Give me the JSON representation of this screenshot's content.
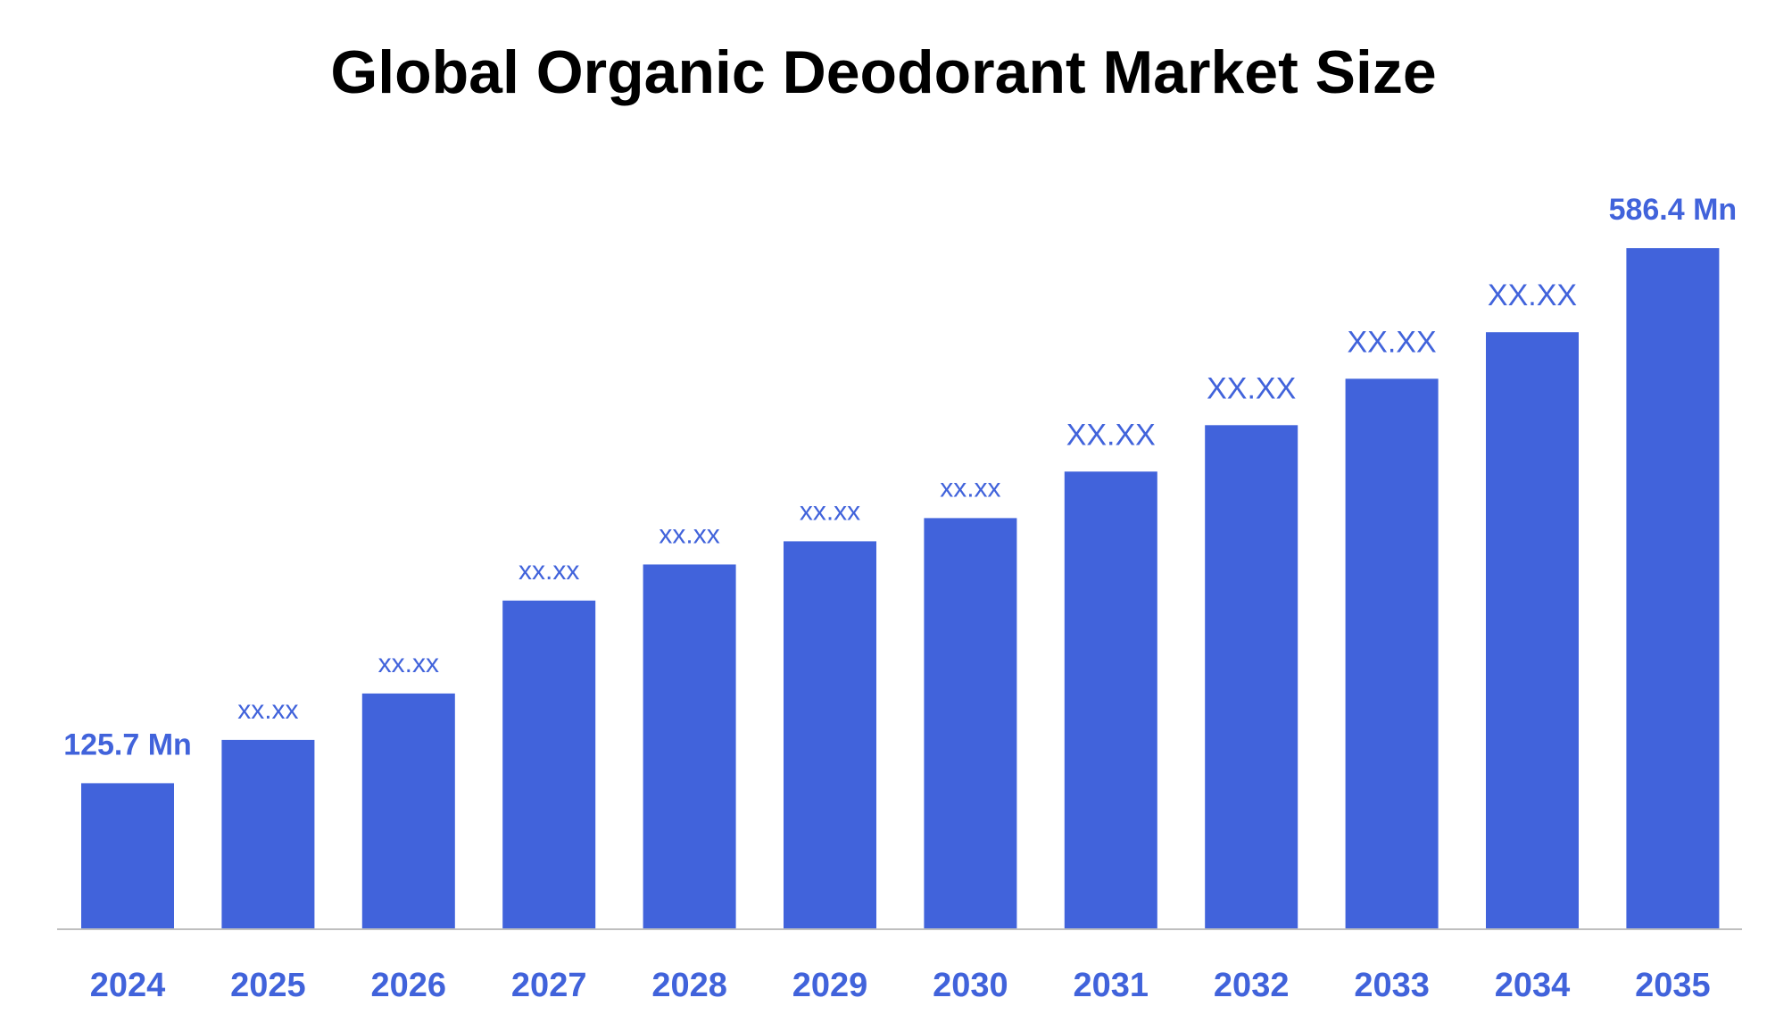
{
  "chart_data": {
    "type": "bar",
    "title": "Global Organic Deodorant Market Size",
    "categories": [
      "2024",
      "2025",
      "2026",
      "2027",
      "2028",
      "2029",
      "2030",
      "2031",
      "2032",
      "2033",
      "2034",
      "2035"
    ],
    "values": [
      125.7,
      163,
      203,
      283,
      314,
      334,
      354,
      394,
      434,
      474,
      514,
      586.4
    ],
    "data_labels": [
      "125.7 Mn",
      "xx.xx",
      "xx.xx",
      "xx.xx",
      "xx.xx",
      "xx.xx",
      "xx.xx",
      "XX.XX",
      "XX.XX",
      "XX.XX",
      "XX.XX",
      "586.4 Mn"
    ],
    "xlabel": "",
    "ylabel": "",
    "ylim": [
      0,
      586.4
    ],
    "grid": false,
    "legend": "none",
    "colors": {
      "bar": "#4163DB",
      "label": "#4163DB",
      "label_highlight": "#0000FF",
      "axis": "#BFBFBF",
      "title": "#000000"
    }
  }
}
